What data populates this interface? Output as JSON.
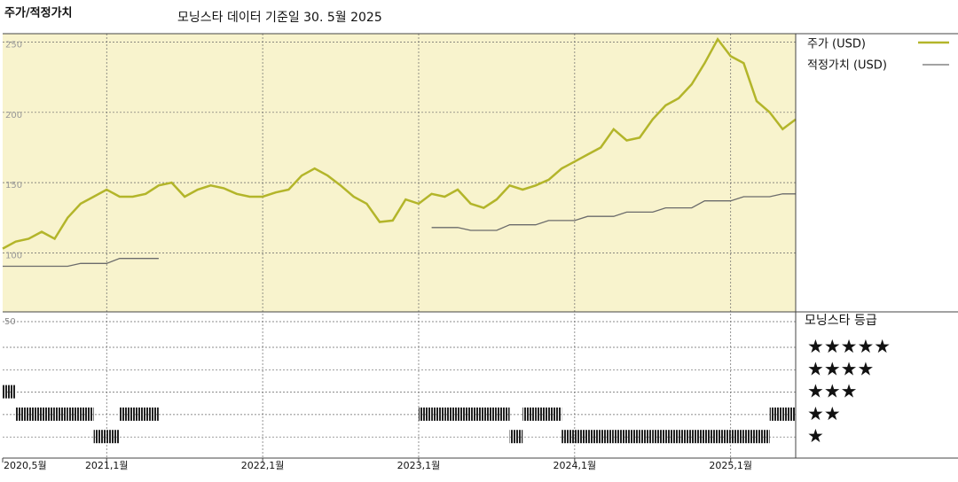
{
  "chart_data": {
    "type": "line",
    "title": "주가/적정가치",
    "subtitle": "모닝스타 데이터 기준일 30. 5월 2025",
    "x": [
      "2020-05",
      "2020-06",
      "2020-07",
      "2020-08",
      "2020-09",
      "2020-10",
      "2020-11",
      "2020-12",
      "2021-01",
      "2021-02",
      "2021-03",
      "2021-04",
      "2021-05",
      "2021-06",
      "2021-07",
      "2021-08",
      "2021-09",
      "2021-10",
      "2021-11",
      "2021-12",
      "2022-01",
      "2022-02",
      "2022-03",
      "2022-04",
      "2022-05",
      "2022-06",
      "2022-07",
      "2022-08",
      "2022-09",
      "2022-10",
      "2022-11",
      "2022-12",
      "2023-01",
      "2023-02",
      "2023-03",
      "2023-04",
      "2023-05",
      "2023-06",
      "2023-07",
      "2023-08",
      "2023-09",
      "2023-10",
      "2023-11",
      "2023-12",
      "2024-01",
      "2024-02",
      "2024-03",
      "2024-04",
      "2024-05",
      "2024-06",
      "2024-07",
      "2024-08",
      "2024-09",
      "2024-10",
      "2024-11",
      "2024-12",
      "2025-01",
      "2025-02",
      "2025-03",
      "2025-04",
      "2025-05",
      "2025-06"
    ],
    "series": [
      {
        "name": "주가 (USD)",
        "color": "#b3b52a",
        "values": [
          103,
          108,
          110,
          115,
          110,
          125,
          135,
          140,
          145,
          140,
          140,
          142,
          148,
          150,
          140,
          145,
          148,
          146,
          142,
          140,
          140,
          143,
          145,
          155,
          160,
          155,
          148,
          140,
          135,
          122,
          123,
          138,
          135,
          142,
          140,
          145,
          135,
          132,
          138,
          148,
          145,
          148,
          152,
          160,
          165,
          170,
          175,
          188,
          180,
          182,
          195,
          205,
          210,
          220,
          235,
          252,
          240,
          235,
          208,
          200,
          188,
          195
        ]
      },
      {
        "name": "적정가치 (USD)",
        "color": "#6b6b6b",
        "values": [
          90.5,
          90.5,
          90.5,
          90.5,
          90.5,
          90.5,
          92.5,
          92.5,
          92.5,
          96,
          96,
          96,
          96,
          null,
          null,
          null,
          null,
          null,
          null,
          null,
          null,
          null,
          null,
          null,
          null,
          null,
          null,
          null,
          null,
          null,
          null,
          null,
          null,
          118,
          118,
          118,
          116,
          116,
          116,
          120,
          120,
          120,
          123,
          123,
          123,
          126,
          126,
          126,
          129,
          129,
          129,
          132,
          132,
          132,
          137,
          137,
          137,
          140,
          140,
          140,
          142,
          142
        ]
      }
    ],
    "xlim": [
      "2020-05",
      "2025-06"
    ],
    "xticks": [
      {
        "value": "2020-05",
        "label": "2020,5월"
      },
      {
        "value": "2021-01",
        "label": "2021,1월"
      },
      {
        "value": "2022-01",
        "label": "2022,1월"
      },
      {
        "value": "2023-01",
        "label": "2023,1월"
      },
      {
        "value": "2024-01",
        "label": "2024,1월"
      },
      {
        "value": "2025-01",
        "label": "2025,1월"
      }
    ],
    "ylim": [
      58,
      256
    ],
    "yticks": [
      100,
      150,
      200,
      250
    ],
    "grid": true,
    "background": "#f8f3cd",
    "ratings": {
      "title": "모닝스타 등급",
      "axis_label": "50",
      "color": "#222222",
      "categories": [
        "★★★★★",
        "★★★★",
        "★★★",
        "★★",
        "★"
      ],
      "values": [
        3,
        2,
        2,
        2,
        2,
        2,
        2,
        1,
        1,
        2,
        2,
        2,
        null,
        null,
        null,
        null,
        null,
        null,
        null,
        null,
        null,
        null,
        null,
        null,
        null,
        null,
        null,
        null,
        null,
        null,
        null,
        null,
        2,
        2,
        2,
        2,
        2,
        2,
        2,
        1,
        2,
        2,
        2,
        1,
        1,
        1,
        1,
        1,
        1,
        1,
        1,
        1,
        1,
        1,
        1,
        1,
        1,
        1,
        1,
        2,
        2,
        2
      ]
    }
  }
}
